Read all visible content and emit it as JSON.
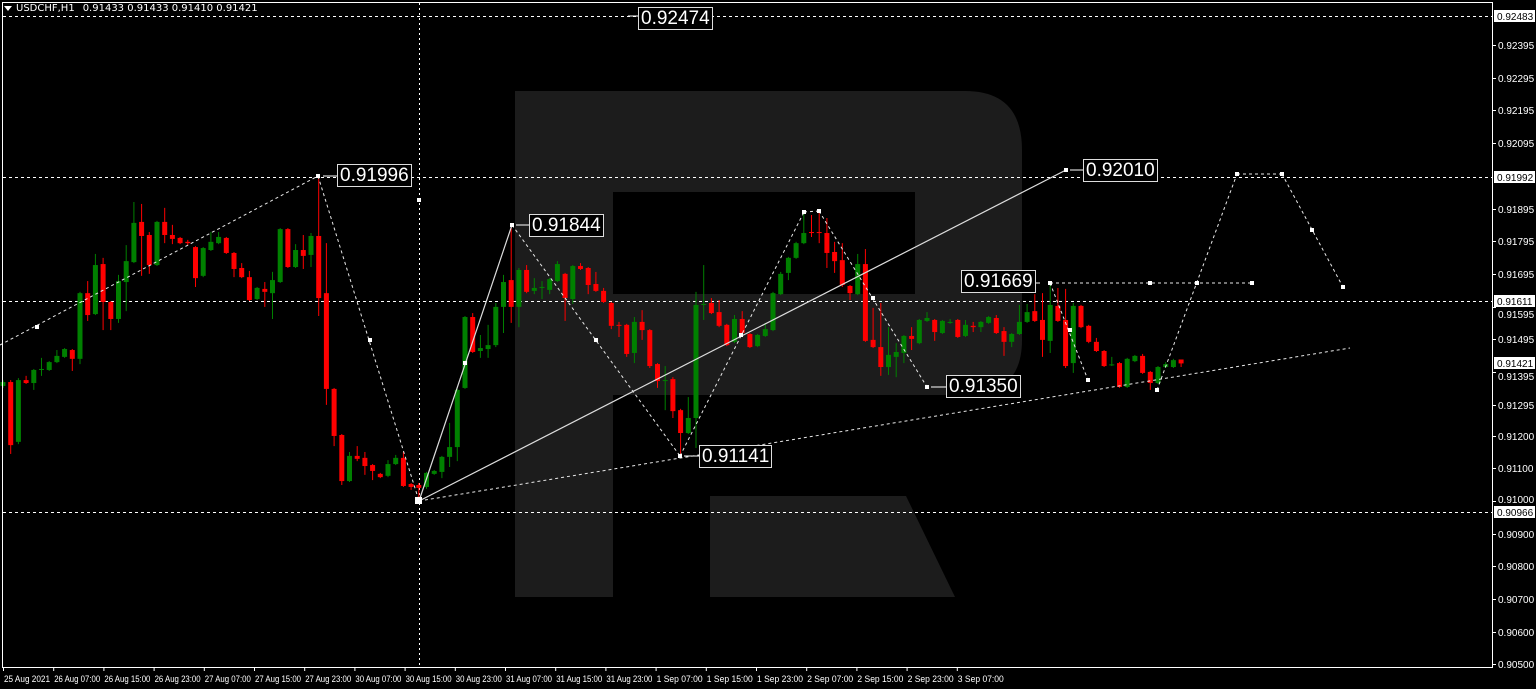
{
  "header": {
    "symbol": "USDCHF,H1",
    "ohlc_text": "0.91433 0.91433 0.91410 0.91421"
  },
  "colors": {
    "background": "#000000",
    "bull": "#008000",
    "bear": "#ff0000",
    "grid_lines": "#ffffff",
    "watermark": "#1c1c1c"
  },
  "watermark": {
    "icon": "roboforex-r-logo"
  },
  "annotations": [
    "0.92474",
    "0.91996",
    "0.91844",
    "0.92010",
    "0.91141",
    "0.91669",
    "0.91350"
  ],
  "chart_data": {
    "type": "candlestick",
    "title": "",
    "instrument": "USDCHF",
    "timeframe": "H1",
    "grid": false,
    "ylim": [
      0.905,
      0.925
    ],
    "y_ticks": [
      "0.92395",
      "0.92295",
      "0.92195",
      "0.92095",
      "0.91895",
      "0.91795",
      "0.91695",
      "0.91595",
      "0.91495",
      "0.91395",
      "0.91295",
      "0.91200",
      "0.91100",
      "0.91000",
      "0.90900",
      "0.90800",
      "0.90700",
      "0.90600",
      "0.90500"
    ],
    "price_levels": [
      "0.92483",
      "0.91992",
      "0.91611",
      "0.90966"
    ],
    "current_price": "0.91421",
    "x_ticks": [
      "25 Aug 2021",
      "26 Aug 07:00",
      "26 Aug 15:00",
      "26 Aug 23:00",
      "27 Aug 07:00",
      "27 Aug 15:00",
      "27 Aug 23:00",
      "30 Aug 07:00",
      "30 Aug 15:00",
      "30 Aug 23:00",
      "31 Aug 07:00",
      "31 Aug 15:00",
      "31 Aug 23:00",
      "1 Sep 07:00",
      "1 Sep 15:00",
      "1 Sep 23:00",
      "2 Sep 07:00",
      "2 Sep 15:00",
      "2 Sep 23:00",
      "3 Sep 07:00"
    ],
    "ohlc_fields": [
      "open",
      "high",
      "low",
      "close"
    ],
    "ohlc": [
      [
        0.91352,
        0.9137,
        0.91346,
        0.91364
      ],
      [
        0.91364,
        0.9137,
        0.91144,
        0.91171
      ],
      [
        0.91181,
        0.91376,
        0.91174,
        0.9137
      ],
      [
        0.9137,
        0.91383,
        0.91358,
        0.91361
      ],
      [
        0.91361,
        0.91404,
        0.9134,
        0.91401
      ],
      [
        0.91401,
        0.91438,
        0.91383,
        0.91404
      ],
      [
        0.91401,
        0.91428,
        0.91398,
        0.91425
      ],
      [
        0.91425,
        0.91462,
        0.91422,
        0.91444
      ],
      [
        0.91441,
        0.91468,
        0.91438,
        0.91465
      ],
      [
        0.91462,
        0.91465,
        0.91398,
        0.91435
      ],
      [
        0.91435,
        0.9164,
        0.91419,
        0.91636
      ],
      [
        0.91636,
        0.91673,
        0.91551,
        0.91569
      ],
      [
        0.91572,
        0.91756,
        0.91569,
        0.91722
      ],
      [
        0.91725,
        0.91744,
        0.91523,
        0.91609
      ],
      [
        0.91609,
        0.91612,
        0.91523,
        0.91557
      ],
      [
        0.91557,
        0.91692,
        0.91545,
        0.91673
      ],
      [
        0.9167,
        0.91783,
        0.91581,
        0.91734
      ],
      [
        0.91731,
        0.91915,
        0.91728,
        0.91851
      ],
      [
        0.91854,
        0.91909,
        0.91689,
        0.91811
      ],
      [
        0.91814,
        0.91823,
        0.91695,
        0.91722
      ],
      [
        0.91722,
        0.91857,
        0.91719,
        0.91854
      ],
      [
        0.91854,
        0.91897,
        0.91789,
        0.91814
      ],
      [
        0.91814,
        0.91845,
        0.91786,
        0.91802
      ],
      [
        0.91805,
        0.91808,
        0.91786,
        0.91789
      ],
      [
        0.91793,
        0.91799,
        0.91783,
        0.91789
      ],
      [
        0.91777,
        0.9178,
        0.91655,
        0.91682
      ],
      [
        0.91689,
        0.91777,
        0.91685,
        0.91774
      ],
      [
        0.91768,
        0.91823,
        0.91765,
        0.91793
      ],
      [
        0.91789,
        0.91823,
        0.91786,
        0.91808
      ],
      [
        0.91805,
        0.91808,
        0.91756,
        0.91759
      ],
      [
        0.91759,
        0.91762,
        0.91685,
        0.9171
      ],
      [
        0.91713,
        0.91728,
        0.91682,
        0.91685
      ],
      [
        0.91685,
        0.91704,
        0.91612,
        0.91615
      ],
      [
        0.91618,
        0.91655,
        0.91615,
        0.91652
      ],
      [
        0.91649,
        0.9167,
        0.91594,
        0.9164
      ],
      [
        0.91636,
        0.91701,
        0.91557,
        0.91676
      ],
      [
        0.9167,
        0.91835,
        0.91667,
        0.91832
      ],
      [
        0.91832,
        0.91835,
        0.91713,
        0.91716
      ],
      [
        0.91716,
        0.91786,
        0.91713,
        0.91768
      ],
      [
        0.91768,
        0.91814,
        0.9171,
        0.9175
      ],
      [
        0.91753,
        0.9182,
        0.91716,
        0.91811
      ],
      [
        0.91811,
        0.91996,
        0.91566,
        0.91621
      ],
      [
        0.91636,
        0.91789,
        0.91294,
        0.91343
      ],
      [
        0.91343,
        0.91346,
        0.91168,
        0.91199
      ],
      [
        0.91202,
        0.91205,
        0.91049,
        0.91061
      ],
      [
        0.91061,
        0.9115,
        0.91058,
        0.91138
      ],
      [
        0.91138,
        0.91168,
        0.91122,
        0.91129
      ],
      [
        0.91132,
        0.9115,
        0.9108,
        0.91107
      ],
      [
        0.9111,
        0.91113,
        0.91064,
        0.91092
      ],
      [
        0.91083,
        0.91086,
        0.9107,
        0.91073
      ],
      [
        0.91077,
        0.91125,
        0.91073,
        0.91113
      ],
      [
        0.91113,
        0.91141,
        0.9111,
        0.91132
      ],
      [
        0.91132,
        0.9115,
        0.91043,
        0.91046
      ],
      [
        0.91052,
        0.91055,
        0.91034,
        0.91043
      ],
      [
        0.91049,
        0.91055,
        0.90998,
        0.9104
      ],
      [
        0.91043,
        0.91089,
        0.91037,
        0.91086
      ],
      [
        0.91083,
        0.91095,
        0.9108,
        0.91092
      ],
      [
        0.91089,
        0.91138,
        0.9107,
        0.91135
      ],
      [
        0.91135,
        0.91239,
        0.91104,
        0.91165
      ],
      [
        0.91165,
        0.91343,
        0.91122,
        0.9134
      ],
      [
        0.91346,
        0.91566,
        0.91343,
        0.91563
      ],
      [
        0.91563,
        0.91575,
        0.91453,
        0.91456
      ],
      [
        0.91459,
        0.91508,
        0.91438,
        0.91468
      ],
      [
        0.91465,
        0.91539,
        0.91438,
        0.91477
      ],
      [
        0.91477,
        0.91606,
        0.91471,
        0.91594
      ],
      [
        0.91594,
        0.91692,
        0.91514,
        0.9167
      ],
      [
        0.91676,
        0.91845,
        0.91545,
        0.91594
      ],
      [
        0.91594,
        0.91713,
        0.91532,
        0.91707
      ],
      [
        0.91707,
        0.91722,
        0.91636,
        0.9164
      ],
      [
        0.91643,
        0.91682,
        0.91633,
        0.91652
      ],
      [
        0.91652,
        0.91673,
        0.91618,
        0.91655
      ],
      [
        0.91646,
        0.91682,
        0.91633,
        0.91679
      ],
      [
        0.91673,
        0.91734,
        0.9167,
        0.91725
      ],
      [
        0.91695,
        0.91698,
        0.91551,
        0.91621
      ],
      [
        0.91618,
        0.91722,
        0.91603,
        0.91719
      ],
      [
        0.91719,
        0.91728,
        0.91707,
        0.9171
      ],
      [
        0.91713,
        0.91716,
        0.91633,
        0.91661
      ],
      [
        0.91664,
        0.91701,
        0.9164,
        0.91643
      ],
      [
        0.91643,
        0.91652,
        0.91606,
        0.91609
      ],
      [
        0.91606,
        0.91609,
        0.91526,
        0.91536
      ],
      [
        0.91539,
        0.91548,
        0.91502,
        0.91536
      ],
      [
        0.91539,
        0.91542,
        0.91441,
        0.9145
      ],
      [
        0.91453,
        0.91563,
        0.91422,
        0.91548
      ],
      [
        0.91548,
        0.91584,
        0.91493,
        0.91523
      ],
      [
        0.91523,
        0.91526,
        0.91407,
        0.91413
      ],
      [
        0.91419,
        0.91422,
        0.91346,
        0.91367
      ],
      [
        0.91367,
        0.91413,
        0.91278,
        0.9137
      ],
      [
        0.91373,
        0.91379,
        0.91254,
        0.91275
      ],
      [
        0.91278,
        0.91282,
        0.91135,
        0.91208
      ],
      [
        0.91208,
        0.91318,
        0.91205,
        0.91254
      ],
      [
        0.91254,
        0.9164,
        0.91162,
        0.916
      ],
      [
        0.916,
        0.91722,
        0.91554,
        0.91603
      ],
      [
        0.91606,
        0.91621,
        0.91572,
        0.91575
      ],
      [
        0.91578,
        0.91615,
        0.91532,
        0.91536
      ],
      [
        0.91539,
        0.91542,
        0.91474,
        0.91477
      ],
      [
        0.91487,
        0.91569,
        0.91483,
        0.91557
      ],
      [
        0.91557,
        0.91581,
        0.91511,
        0.91514
      ],
      [
        0.91511,
        0.91514,
        0.91468,
        0.91471
      ],
      [
        0.91474,
        0.91511,
        0.91471,
        0.91508
      ],
      [
        0.91505,
        0.91545,
        0.91502,
        0.91526
      ],
      [
        0.91523,
        0.9164,
        0.9152,
        0.91636
      ],
      [
        0.91633,
        0.91701,
        0.9163,
        0.91695
      ],
      [
        0.91698,
        0.91747,
        0.91676,
        0.91744
      ],
      [
        0.91744,
        0.91793,
        0.91741,
        0.91789
      ],
      [
        0.91789,
        0.91881,
        0.91786,
        0.9182
      ],
      [
        0.91823,
        0.91875,
        0.91808,
        0.9182
      ],
      [
        0.91823,
        0.91887,
        0.91789,
        0.9182
      ],
      [
        0.9182,
        0.91866,
        0.91713,
        0.91759
      ],
      [
        0.91762,
        0.91793,
        0.91698,
        0.91734
      ],
      [
        0.91737,
        0.91789,
        0.91655,
        0.91661
      ],
      [
        0.91658,
        0.91661,
        0.91615,
        0.91636
      ],
      [
        0.91633,
        0.91756,
        0.9163,
        0.91725
      ],
      [
        0.91725,
        0.91771,
        0.91487,
        0.9149
      ],
      [
        0.91493,
        0.91591,
        0.91468,
        0.91471
      ],
      [
        0.91471,
        0.91606,
        0.91383,
        0.9141
      ],
      [
        0.9141,
        0.91532,
        0.91386,
        0.91447
      ],
      [
        0.91441,
        0.91483,
        0.91379,
        0.91456
      ],
      [
        0.91453,
        0.91508,
        0.91422,
        0.91505
      ],
      [
        0.91505,
        0.91532,
        0.91462,
        0.91496
      ],
      [
        0.91483,
        0.91557,
        0.9148,
        0.91554
      ],
      [
        0.91551,
        0.91578,
        0.91548,
        0.9156
      ],
      [
        0.91554,
        0.91557,
        0.9149,
        0.91517
      ],
      [
        0.91514,
        0.91554,
        0.91511,
        0.91551
      ],
      [
        0.91545,
        0.91557,
        0.91542,
        0.91548
      ],
      [
        0.91554,
        0.91557,
        0.91499,
        0.91502
      ],
      [
        0.91505,
        0.91554,
        0.91502,
        0.91539
      ],
      [
        0.91536,
        0.91548,
        0.91517,
        0.91532
      ],
      [
        0.91532,
        0.91551,
        0.91517,
        0.91548
      ],
      [
        0.91545,
        0.91566,
        0.91542,
        0.91563
      ],
      [
        0.9156,
        0.91569,
        0.91511,
        0.91514
      ],
      [
        0.9152,
        0.91532,
        0.91444,
        0.91487
      ],
      [
        0.91487,
        0.91514,
        0.91471,
        0.91511
      ],
      [
        0.91511,
        0.916,
        0.91508,
        0.91548
      ],
      [
        0.91548,
        0.91603,
        0.91545,
        0.91578
      ],
      [
        0.91581,
        0.91633,
        0.91548,
        0.91551
      ],
      [
        0.91554,
        0.91636,
        0.91441,
        0.91493
      ],
      [
        0.9149,
        0.91667,
        0.91453,
        0.916
      ],
      [
        0.91597,
        0.91652,
        0.91548,
        0.91551
      ],
      [
        0.91554,
        0.91649,
        0.91407,
        0.91413
      ],
      [
        0.91422,
        0.91606,
        0.91392,
        0.91597
      ],
      [
        0.91597,
        0.916,
        0.91529,
        0.91532
      ],
      [
        0.91536,
        0.91539,
        0.91483,
        0.91487
      ],
      [
        0.91487,
        0.91499,
        0.91456,
        0.91459
      ],
      [
        0.91459,
        0.91462,
        0.9141,
        0.91413
      ],
      [
        0.91416,
        0.91441,
        0.91413,
        0.91418
      ],
      [
        0.91422,
        0.91425,
        0.91346,
        0.91349
      ],
      [
        0.91349,
        0.91438,
        0.91346,
        0.91435
      ],
      [
        0.91428,
        0.91447,
        0.91425,
        0.91444
      ],
      [
        0.91444,
        0.9145,
        0.91389,
        0.91392
      ],
      [
        0.91395,
        0.91398,
        0.9134,
        0.91361
      ],
      [
        0.91361,
        0.91413,
        0.91358,
        0.9141
      ],
      [
        0.9141,
        0.91425,
        0.91407,
        0.91419
      ],
      [
        0.9141,
        0.91435,
        0.91407,
        0.91431
      ],
      [
        0.91433,
        0.91433,
        0.9141,
        0.91421
      ]
    ]
  }
}
